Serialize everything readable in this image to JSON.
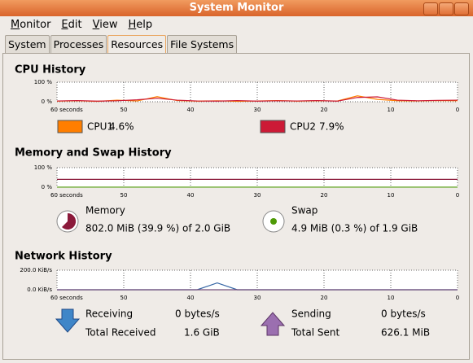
{
  "window": {
    "title": "System Monitor"
  },
  "menu": [
    "Monitor",
    "Edit",
    "View",
    "Help"
  ],
  "tabs": [
    "System",
    "Processes",
    "Resources",
    "File Systems"
  ],
  "selected_tab": 2,
  "cpu": {
    "title": "CPU History",
    "graph": {
      "x": [
        60,
        57,
        54,
        51,
        48,
        45,
        42,
        39,
        36,
        33,
        30,
        27,
        24,
        21,
        18,
        15,
        12,
        9,
        6,
        3,
        0
      ],
      "xlim": [
        60,
        0
      ],
      "xticks": [
        {
          "value": 60,
          "label": "60 seconds"
        },
        50,
        40,
        30,
        20,
        10,
        0
      ],
      "ylim": [
        0,
        100
      ],
      "yticks": [
        {
          "value": 100,
          "label": "100 %"
        },
        {
          "value": 0,
          "label": "0 %"
        }
      ],
      "series": [
        {
          "name": "CPU1",
          "color": "#ff7e00",
          "current": "4.6%",
          "values": [
            3,
            5,
            2,
            8,
            4,
            26,
            6,
            3,
            5,
            2,
            4,
            6,
            3,
            5,
            4,
            30,
            12,
            5,
            4,
            6,
            5
          ]
        },
        {
          "name": "CPU2",
          "color": "#cc1a36",
          "current": "7.9%",
          "values": [
            4,
            6,
            3,
            5,
            10,
            18,
            8,
            4,
            3,
            6,
            3,
            5,
            4,
            6,
            3,
            22,
            25,
            8,
            5,
            7,
            8
          ]
        }
      ]
    }
  },
  "memory": {
    "title": "Memory and Swap History",
    "graph": {
      "x": [
        60,
        57,
        54,
        51,
        48,
        45,
        42,
        39,
        36,
        33,
        30,
        27,
        24,
        21,
        18,
        15,
        12,
        9,
        6,
        3,
        0
      ],
      "xlim": [
        60,
        0
      ],
      "xticks": [
        {
          "value": 60,
          "label": "60 seconds"
        },
        50,
        40,
        30,
        20,
        10,
        0
      ],
      "ylim": [
        0,
        100
      ],
      "yticks": [
        {
          "value": 100,
          "label": "100 %"
        },
        {
          "value": 0,
          "label": "0 %"
        }
      ],
      "series": [
        {
          "name": "Memory",
          "color": "#8b1a3b",
          "current": "802.0 MiB (39.9 %) of 2.0 GiB",
          "values": [
            40,
            40,
            40,
            40,
            40,
            40,
            40,
            40,
            40,
            40,
            40,
            40,
            40,
            40,
            40,
            40,
            40,
            40,
            40,
            40,
            40
          ]
        },
        {
          "name": "Swap",
          "color": "#4e9a06",
          "current": "4.9 MiB (0.3 %) of 1.9 GiB",
          "values": [
            0.3,
            0.3,
            0.3,
            0.3,
            0.3,
            0.3,
            0.3,
            0.3,
            0.3,
            0.3,
            0.3,
            0.3,
            0.3,
            0.3,
            0.3,
            0.3,
            0.3,
            0.3,
            0.3,
            0.3,
            0.3
          ]
        }
      ]
    }
  },
  "network": {
    "title": "Network History",
    "graph": {
      "x": [
        60,
        57,
        54,
        51,
        48,
        45,
        42,
        39,
        36,
        33,
        30,
        27,
        24,
        21,
        18,
        15,
        12,
        9,
        6,
        3,
        0
      ],
      "xlim": [
        60,
        0
      ],
      "xticks": [
        {
          "value": 60,
          "label": "60 seconds"
        },
        50,
        40,
        30,
        20,
        10,
        0
      ],
      "ylim": [
        0,
        200
      ],
      "yticks": [
        {
          "value": 200,
          "label": "200.0 KiB/s"
        },
        {
          "value": 0,
          "label": "0.0 KiB/s"
        }
      ],
      "series": [
        {
          "name": "Receiving",
          "color": "#3465a4",
          "current": "0 bytes/s",
          "total_label": "Total Received",
          "total": "1.6 GiB",
          "values": [
            0,
            0,
            0,
            0,
            0,
            0,
            0,
            0,
            70,
            0,
            0,
            0,
            0,
            0,
            0,
            0,
            0,
            0,
            0,
            0,
            0
          ]
        },
        {
          "name": "Sending",
          "color": "#75507b",
          "current": "0 bytes/s",
          "total_label": "Total Sent",
          "total": "626.1 MiB",
          "values": [
            0,
            0,
            0,
            0,
            0,
            0,
            0,
            0,
            0,
            0,
            0,
            0,
            0,
            0,
            0,
            0,
            0,
            0,
            0,
            0,
            0
          ]
        }
      ]
    }
  }
}
